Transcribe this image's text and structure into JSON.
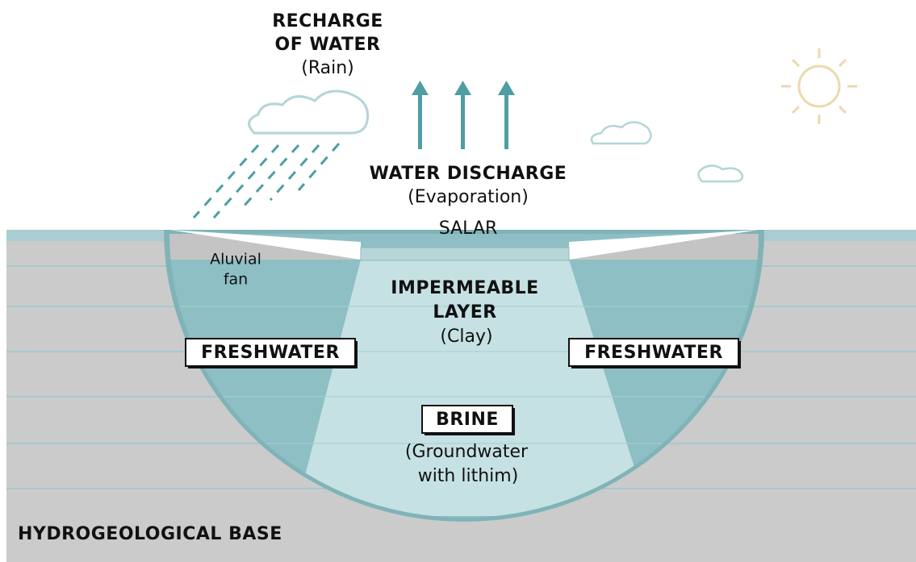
{
  "recharge": {
    "title_lines": [
      "RECHARGE",
      "OF WATER"
    ],
    "subtitle": "(Rain)"
  },
  "discharge": {
    "title": "WATER DISCHARGE",
    "subtitle": "(Evaporation)"
  },
  "salar": "SALAR",
  "aluvial_fan": [
    "Aluvial",
    "fan"
  ],
  "impermeable": {
    "title_lines": [
      "IMPERMEABLE",
      "LAYER"
    ],
    "subtitle": "(Clay)"
  },
  "freshwater_left": "FRESHWATER",
  "freshwater_right": "FRESHWATER",
  "brine": {
    "title": "BRINE",
    "subtitle_lines": [
      "(Groundwater",
      "with lithim)"
    ]
  },
  "base": "HYDROGEOLOGICAL BASE"
}
